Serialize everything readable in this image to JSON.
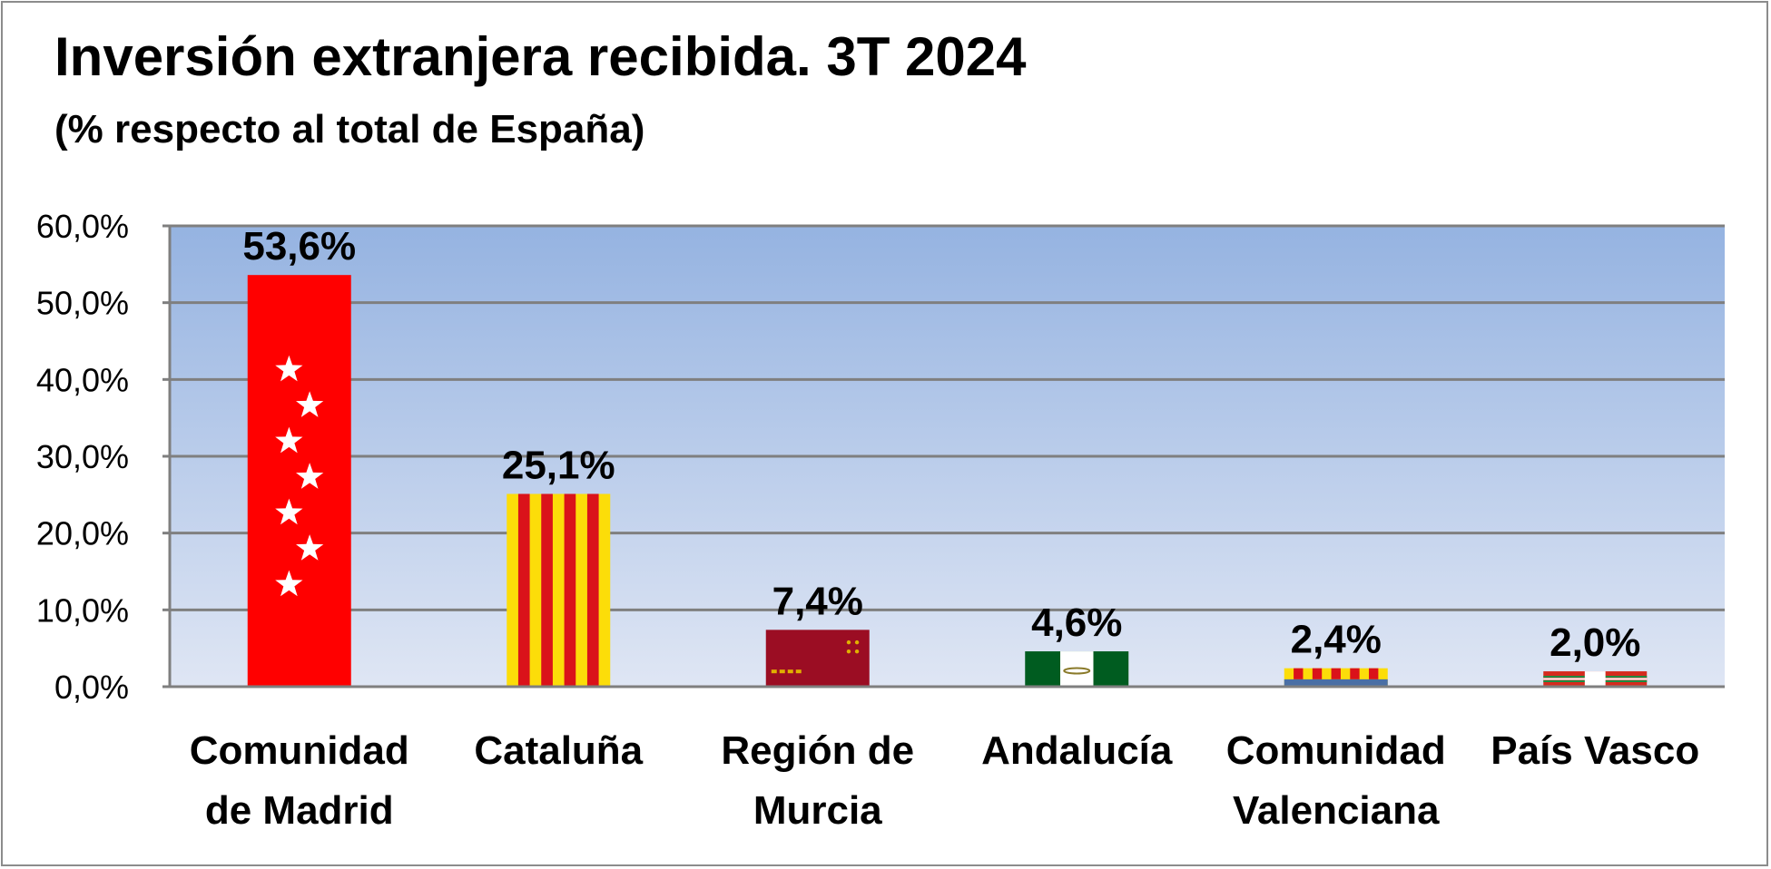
{
  "chart_data": {
    "type": "bar",
    "title": "Inversión extranjera recibida. 3T 2024",
    "subtitle": "(% respecto al total de España)",
    "categories": [
      [
        "Comunidad",
        "de Madrid"
      ],
      [
        "Cataluña"
      ],
      [
        "Región de",
        "Murcia"
      ],
      [
        "Andalucía"
      ],
      [
        "Comunidad",
        "Valenciana"
      ],
      [
        "País Vasco"
      ]
    ],
    "values": [
      53.6,
      25.1,
      7.4,
      4.6,
      2.4,
      2.0
    ],
    "data_labels": [
      "53,6%",
      "25,1%",
      "7,4%",
      "4,6%",
      "2,4%",
      "2,0%"
    ],
    "flags": [
      "madrid",
      "catalunya",
      "murcia",
      "andalucia",
      "valenciana",
      "euskadi"
    ],
    "ylim": [
      0,
      60
    ],
    "yticks": [
      0,
      10,
      20,
      30,
      40,
      50,
      60
    ],
    "ytick_labels": [
      "0,0%",
      "10,0%",
      "20,0%",
      "30,0%",
      "40,0%",
      "50,0%",
      "60,0%"
    ],
    "xlabel": "",
    "ylabel": "",
    "grid": true,
    "legend": "none",
    "colors": {
      "plot_top": "#95b3e1",
      "plot_bottom": "#dfe6f4",
      "grid": "#7f7f7f",
      "madrid_red": "#ff0000",
      "cat_yellow": "#fcdd09",
      "cat_red": "#da121a",
      "murcia_red": "#9b0d23",
      "andalucia_green": "#005c20",
      "euskadi_red": "#d52b1e",
      "euskadi_green": "#009b48"
    }
  }
}
